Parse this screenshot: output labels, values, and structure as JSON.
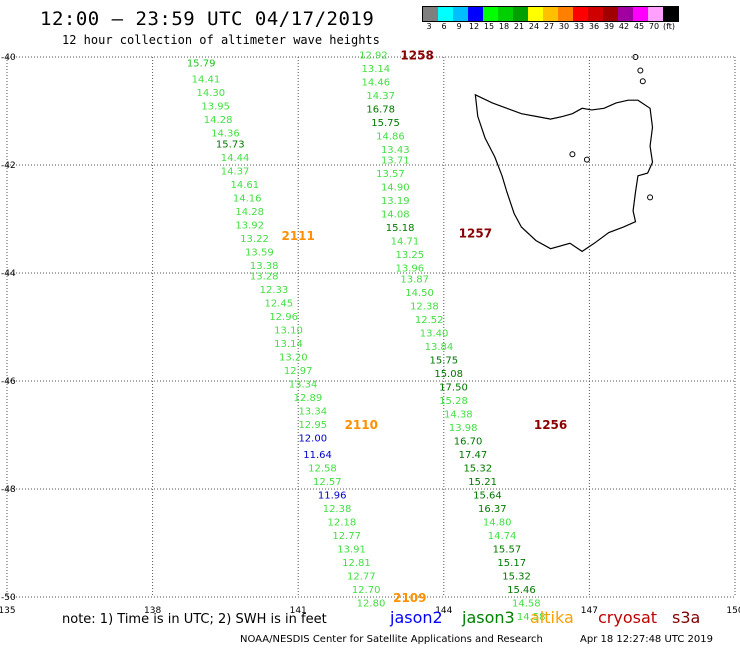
{
  "title": "12:00 – 23:59 UTC 04/17/2019",
  "subtitle": "12 hour collection of altimeter wave heights",
  "colorbar": {
    "colors": [
      "#7f7f7f",
      "#00ffff",
      "#00bfff",
      "#0000ff",
      "#00ff00",
      "#00d000",
      "#00a000",
      "#ffff00",
      "#ffc000",
      "#ff8000",
      "#ff0000",
      "#d00000",
      "#a00000",
      "#a000a0",
      "#ff00ff",
      "#ffa0ff",
      "#000000"
    ],
    "labels": [
      "3",
      "6",
      "9",
      "12",
      "15",
      "18",
      "21",
      "24",
      "27",
      "30",
      "33",
      "36",
      "39",
      "42",
      "45",
      "70",
      "(ft)"
    ]
  },
  "satellites": [
    {
      "name": "jason2",
      "color": "#0000ff"
    },
    {
      "name": "jason3",
      "color": "#008000"
    },
    {
      "name": "altika",
      "color": "#ffa000"
    },
    {
      "name": "cryosat",
      "color": "#c00000"
    },
    {
      "name": "s3a",
      "color": "#800000"
    }
  ],
  "note": "note: 1) Time is in UTC; 2) SWH is in feet",
  "credit": "NOAA/NESDIS Center for Satellite Applications and Research",
  "timestamp": "Apr 18 12:27:48 UTC 2019",
  "chart_data": {
    "type": "scatter",
    "title": "12:00 – 23:59 UTC 04/17/2019",
    "subtitle": "12 hour collection of altimeter wave heights",
    "xlim": [
      135,
      150
    ],
    "ylim": [
      -50,
      -40
    ],
    "xticks": [
      "135",
      "138",
      "141",
      "144",
      "147",
      "150"
    ],
    "yticks": [
      "-40",
      "-42",
      "-44",
      "-46",
      "-48",
      "-50"
    ],
    "grid": true,
    "series": [
      {
        "name": "altika",
        "pass_labels": [
          {
            "label": "2111",
            "lon": 141.0,
            "lat": -43.3
          },
          {
            "label": "2110",
            "lon": 142.3,
            "lat": -46.8
          },
          {
            "label": "2109",
            "lon": 143.3,
            "lat": -50.0
          }
        ],
        "points": [
          {
            "lon": 139.0,
            "lat": -40.1,
            "v": "15.79",
            "c": "#22c422"
          },
          {
            "lon": 139.1,
            "lat": -40.4,
            "v": "14.41",
            "c": "#44e044"
          },
          {
            "lon": 139.2,
            "lat": -40.65,
            "v": "14.30",
            "c": "#44e044"
          },
          {
            "lon": 139.3,
            "lat": -40.9,
            "v": "13.95",
            "c": "#44e044"
          },
          {
            "lon": 139.35,
            "lat": -41.15,
            "v": "14.28",
            "c": "#44e044"
          },
          {
            "lon": 139.5,
            "lat": -41.4,
            "v": "14.36",
            "c": "#44e044"
          },
          {
            "lon": 139.6,
            "lat": -41.6,
            "v": "15.73",
            "c": "#007800"
          },
          {
            "lon": 139.7,
            "lat": -41.85,
            "v": "14.44",
            "c": "#44e044"
          },
          {
            "lon": 139.7,
            "lat": -42.1,
            "v": "14.37",
            "c": "#44e044"
          },
          {
            "lon": 139.9,
            "lat": -42.35,
            "v": "14.61",
            "c": "#44e044"
          },
          {
            "lon": 139.95,
            "lat": -42.6,
            "v": "14.16",
            "c": "#44e044"
          },
          {
            "lon": 140.0,
            "lat": -42.85,
            "v": "14.28",
            "c": "#44e044"
          },
          {
            "lon": 140.0,
            "lat": -43.1,
            "v": "13.92",
            "c": "#44e044"
          },
          {
            "lon": 140.1,
            "lat": -43.35,
            "v": "13.22",
            "c": "#44e044"
          },
          {
            "lon": 140.2,
            "lat": -43.6,
            "v": "13.59",
            "c": "#44e044"
          },
          {
            "lon": 140.3,
            "lat": -43.85,
            "v": "13.38",
            "c": "#44e044"
          },
          {
            "lon": 140.3,
            "lat": -44.05,
            "v": "13.28",
            "c": "#44e044"
          },
          {
            "lon": 140.5,
            "lat": -44.3,
            "v": "12.33",
            "c": "#44e044"
          },
          {
            "lon": 140.6,
            "lat": -44.55,
            "v": "12.45",
            "c": "#44e044"
          },
          {
            "lon": 140.7,
            "lat": -44.8,
            "v": "12.96",
            "c": "#44e044"
          },
          {
            "lon": 140.8,
            "lat": -45.05,
            "v": "13.10",
            "c": "#44e044"
          },
          {
            "lon": 140.8,
            "lat": -45.3,
            "v": "13.14",
            "c": "#44e044"
          },
          {
            "lon": 140.9,
            "lat": -45.55,
            "v": "13.20",
            "c": "#44e044"
          },
          {
            "lon": 141.0,
            "lat": -45.8,
            "v": "12.97",
            "c": "#44e044"
          },
          {
            "lon": 141.1,
            "lat": -46.05,
            "v": "13.34",
            "c": "#44e044"
          },
          {
            "lon": 141.2,
            "lat": -46.3,
            "v": "12.89",
            "c": "#44e044"
          },
          {
            "lon": 141.3,
            "lat": -46.55,
            "v": "13.34",
            "c": "#44e044"
          },
          {
            "lon": 141.3,
            "lat": -46.8,
            "v": "12.95",
            "c": "#44e044"
          },
          {
            "lon": 141.3,
            "lat": -47.05,
            "v": "12.00",
            "c": "#0000cc"
          },
          {
            "lon": 141.4,
            "lat": -47.35,
            "v": "11.64",
            "c": "#0000cc"
          },
          {
            "lon": 141.5,
            "lat": -47.6,
            "v": "12.58",
            "c": "#44e044"
          },
          {
            "lon": 141.6,
            "lat": -47.85,
            "v": "12.57",
            "c": "#44e044"
          },
          {
            "lon": 141.7,
            "lat": -48.1,
            "v": "11.96",
            "c": "#0000cc"
          },
          {
            "lon": 141.8,
            "lat": -48.35,
            "v": "12.38",
            "c": "#44e044"
          },
          {
            "lon": 141.9,
            "lat": -48.6,
            "v": "12.18",
            "c": "#44e044"
          },
          {
            "lon": 142.0,
            "lat": -48.85,
            "v": "12.77",
            "c": "#44e044"
          },
          {
            "lon": 142.1,
            "lat": -49.1,
            "v": "13.91",
            "c": "#44e044"
          },
          {
            "lon": 142.2,
            "lat": -49.35,
            "v": "12.81",
            "c": "#44e044"
          },
          {
            "lon": 142.3,
            "lat": -49.6,
            "v": "12.77",
            "c": "#44e044"
          },
          {
            "lon": 142.4,
            "lat": -49.85,
            "v": "12.70",
            "c": "#44e044"
          },
          {
            "lon": 142.5,
            "lat": -50.1,
            "v": "12.80",
            "c": "#44e044"
          }
        ]
      },
      {
        "name": "s3a",
        "pass_labels": [
          {
            "label": "1258",
            "lon": 143.45,
            "lat": -39.95
          },
          {
            "label": "1257",
            "lon": 144.65,
            "lat": -43.25
          },
          {
            "label": "1256",
            "lon": 146.2,
            "lat": -46.8
          }
        ],
        "points": [
          {
            "lon": 142.55,
            "lat": -39.95,
            "v": "12.92",
            "c": "#44e044"
          },
          {
            "lon": 142.6,
            "lat": -40.2,
            "v": "13.14",
            "c": "#44e044"
          },
          {
            "lon": 142.6,
            "lat": -40.45,
            "v": "14.46",
            "c": "#44e044"
          },
          {
            "lon": 142.7,
            "lat": -40.7,
            "v": "14.37",
            "c": "#44e044"
          },
          {
            "lon": 142.7,
            "lat": -40.95,
            "v": "16.78",
            "c": "#007800"
          },
          {
            "lon": 142.8,
            "lat": -41.2,
            "v": "15.75",
            "c": "#007800"
          },
          {
            "lon": 142.9,
            "lat": -41.45,
            "v": "14.86",
            "c": "#44e044"
          },
          {
            "lon": 143.0,
            "lat": -41.7,
            "v": "13.43",
            "c": "#44e044"
          },
          {
            "lon": 143.0,
            "lat": -41.9,
            "v": "13.71",
            "c": "#44e044"
          },
          {
            "lon": 142.9,
            "lat": -42.15,
            "v": "13.57",
            "c": "#44e044"
          },
          {
            "lon": 143.0,
            "lat": -42.4,
            "v": "14.90",
            "c": "#44e044"
          },
          {
            "lon": 143.0,
            "lat": -42.65,
            "v": "13.19",
            "c": "#44e044"
          },
          {
            "lon": 143.0,
            "lat": -42.9,
            "v": "14.08",
            "c": "#44e044"
          },
          {
            "lon": 143.1,
            "lat": -43.15,
            "v": "15.18",
            "c": "#007800"
          },
          {
            "lon": 143.2,
            "lat": -43.4,
            "v": "14.71",
            "c": "#44e044"
          },
          {
            "lon": 143.3,
            "lat": -43.65,
            "v": "13.25",
            "c": "#44e044"
          },
          {
            "lon": 143.3,
            "lat": -43.9,
            "v": "13.96",
            "c": "#44e044"
          },
          {
            "lon": 143.4,
            "lat": -44.1,
            "v": "13.87",
            "c": "#44e044"
          },
          {
            "lon": 143.5,
            "lat": -44.35,
            "v": "14.50",
            "c": "#44e044"
          },
          {
            "lon": 143.6,
            "lat": -44.6,
            "v": "12.38",
            "c": "#44e044"
          },
          {
            "lon": 143.7,
            "lat": -44.85,
            "v": "12.52",
            "c": "#44e044"
          },
          {
            "lon": 143.8,
            "lat": -45.1,
            "v": "13.40",
            "c": "#44e044"
          },
          {
            "lon": 143.9,
            "lat": -45.35,
            "v": "13.84",
            "c": "#44e044"
          },
          {
            "lon": 144.0,
            "lat": -45.6,
            "v": "15.75",
            "c": "#007800"
          },
          {
            "lon": 144.1,
            "lat": -45.85,
            "v": "15.08",
            "c": "#007800"
          },
          {
            "lon": 144.2,
            "lat": -46.1,
            "v": "17.50",
            "c": "#007800"
          },
          {
            "lon": 144.2,
            "lat": -46.35,
            "v": "15.28",
            "c": "#44e044"
          },
          {
            "lon": 144.3,
            "lat": -46.6,
            "v": "14.38",
            "c": "#44e044"
          },
          {
            "lon": 144.4,
            "lat": -46.85,
            "v": "13.98",
            "c": "#44e044"
          },
          {
            "lon": 144.5,
            "lat": -47.1,
            "v": "16.70",
            "c": "#007800"
          },
          {
            "lon": 144.6,
            "lat": -47.35,
            "v": "17.47",
            "c": "#007800"
          },
          {
            "lon": 144.7,
            "lat": -47.6,
            "v": "15.32",
            "c": "#007800"
          },
          {
            "lon": 144.8,
            "lat": -47.85,
            "v": "15.21",
            "c": "#007800"
          },
          {
            "lon": 144.9,
            "lat": -48.1,
            "v": "15.64",
            "c": "#007800"
          },
          {
            "lon": 145.0,
            "lat": -48.35,
            "v": "16.37",
            "c": "#007800"
          },
          {
            "lon": 145.1,
            "lat": -48.6,
            "v": "14.80",
            "c": "#44e044"
          },
          {
            "lon": 145.2,
            "lat": -48.85,
            "v": "14.74",
            "c": "#44e044"
          },
          {
            "lon": 145.3,
            "lat": -49.1,
            "v": "15.57",
            "c": "#007800"
          },
          {
            "lon": 145.4,
            "lat": -49.35,
            "v": "15.17",
            "c": "#007800"
          },
          {
            "lon": 145.5,
            "lat": -49.6,
            "v": "15.32",
            "c": "#007800"
          },
          {
            "lon": 145.6,
            "lat": -49.85,
            "v": "15.46",
            "c": "#007800"
          },
          {
            "lon": 145.7,
            "lat": -50.1,
            "v": "14.58",
            "c": "#44e044"
          },
          {
            "lon": 145.8,
            "lat": -50.35,
            "v": "14.58",
            "c": "#44e044"
          }
        ]
      }
    ]
  }
}
